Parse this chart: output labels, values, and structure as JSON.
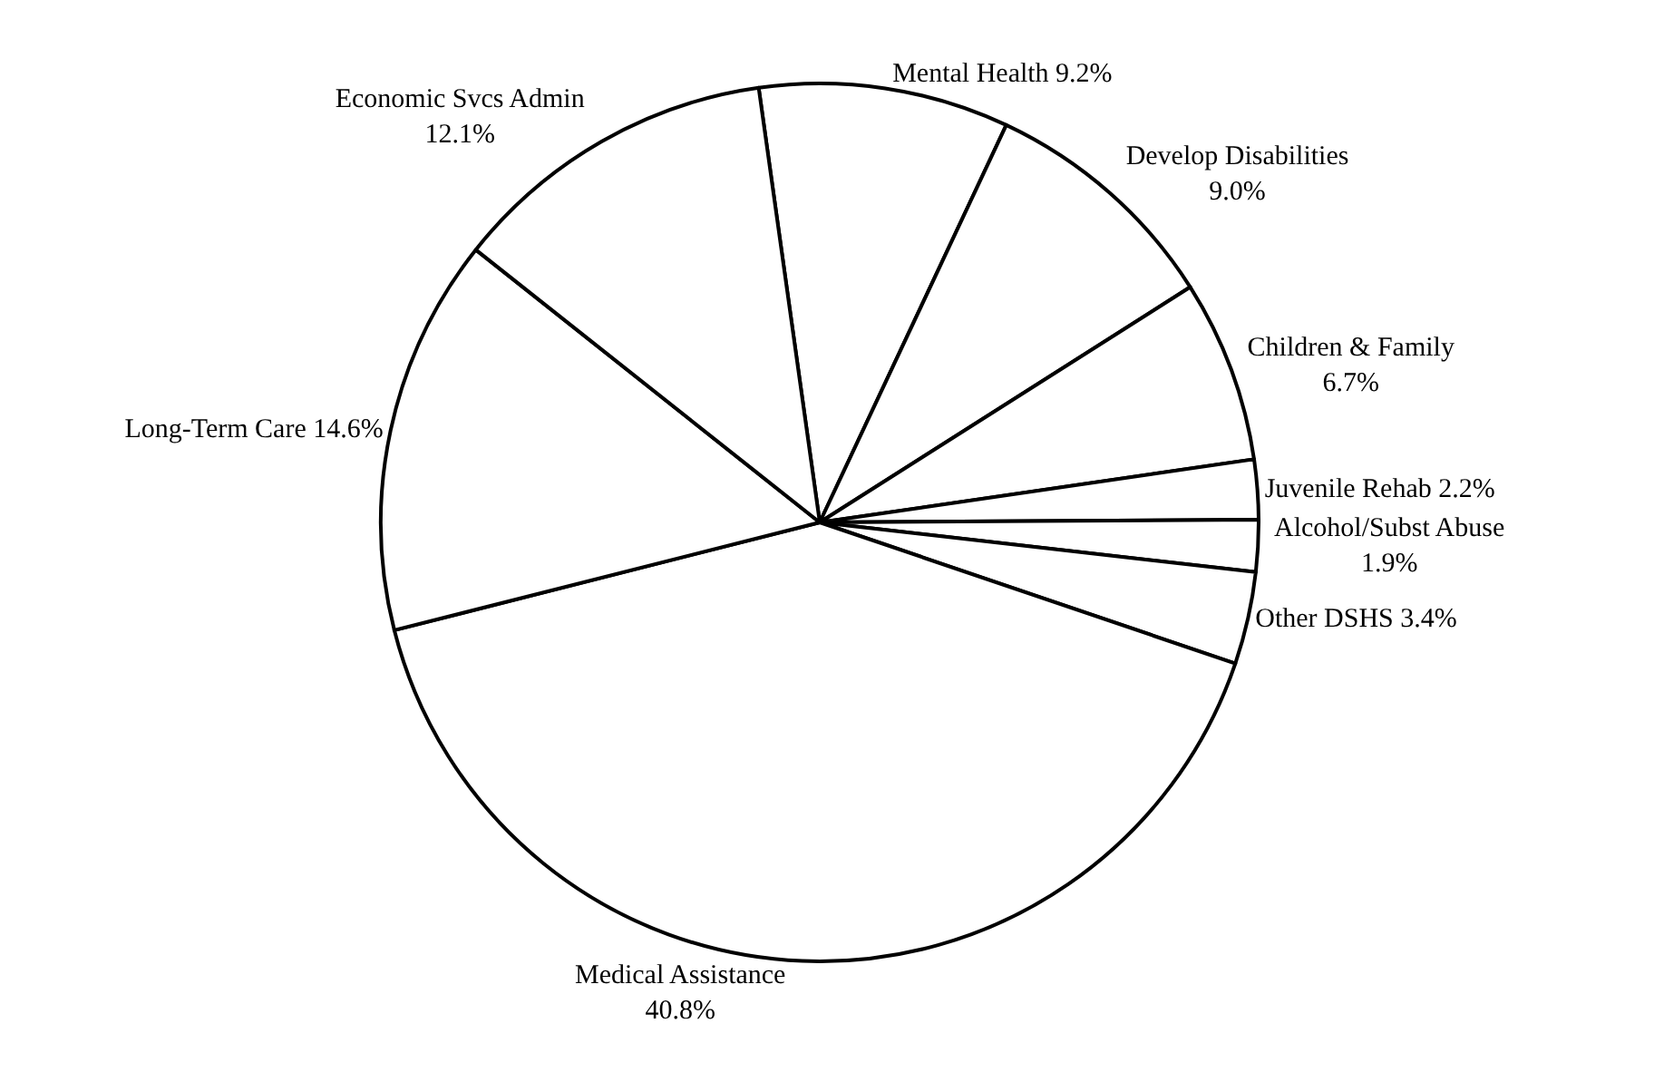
{
  "chart_data": {
    "type": "pie",
    "categories": [
      "Mental Health",
      "Develop Disabilities",
      "Children & Family",
      "Juvenile Rehab",
      "Alcohol/Subst Abuse",
      "Other DSHS",
      "Medical Assistance",
      "Long-Term Care",
      "Economic Svcs Admin"
    ],
    "values": [
      9.2,
      9.0,
      6.7,
      2.2,
      1.9,
      3.4,
      40.8,
      14.6,
      12.1
    ],
    "value_labels": [
      "9.2%",
      "9.0%",
      "6.7%",
      "2.2%",
      "1.9%",
      "3.4%",
      "40.8%",
      "14.6%",
      "12.1%"
    ],
    "colors": [
      "#ffffff",
      "#ffffff",
      "#ffffff",
      "#ffffff",
      "#ffffff",
      "#ffffff",
      "#ffffff",
      "#ffffff",
      "#ffffff"
    ]
  }
}
